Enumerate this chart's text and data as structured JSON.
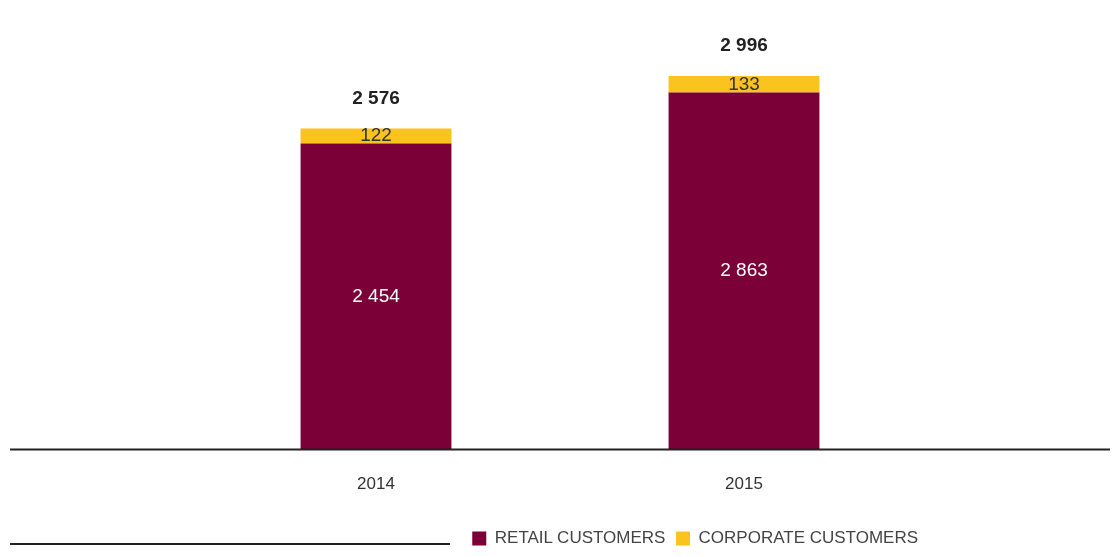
{
  "chart_data": {
    "type": "bar",
    "stacked": true,
    "categories": [
      "2014",
      "2015"
    ],
    "series": [
      {
        "name": "RETAIL CUSTOMERS",
        "color": "#7a0037",
        "values": [
          2454,
          2863
        ],
        "value_labels": [
          "2 454",
          "2 863"
        ]
      },
      {
        "name": "CORPORATE CUSTOMERS",
        "color": "#fbc31f",
        "values": [
          122,
          133
        ],
        "value_labels": [
          "122",
          "133"
        ]
      }
    ],
    "totals": [
      "2 576",
      "2 996"
    ],
    "legend": "bottom right",
    "grid": false
  }
}
